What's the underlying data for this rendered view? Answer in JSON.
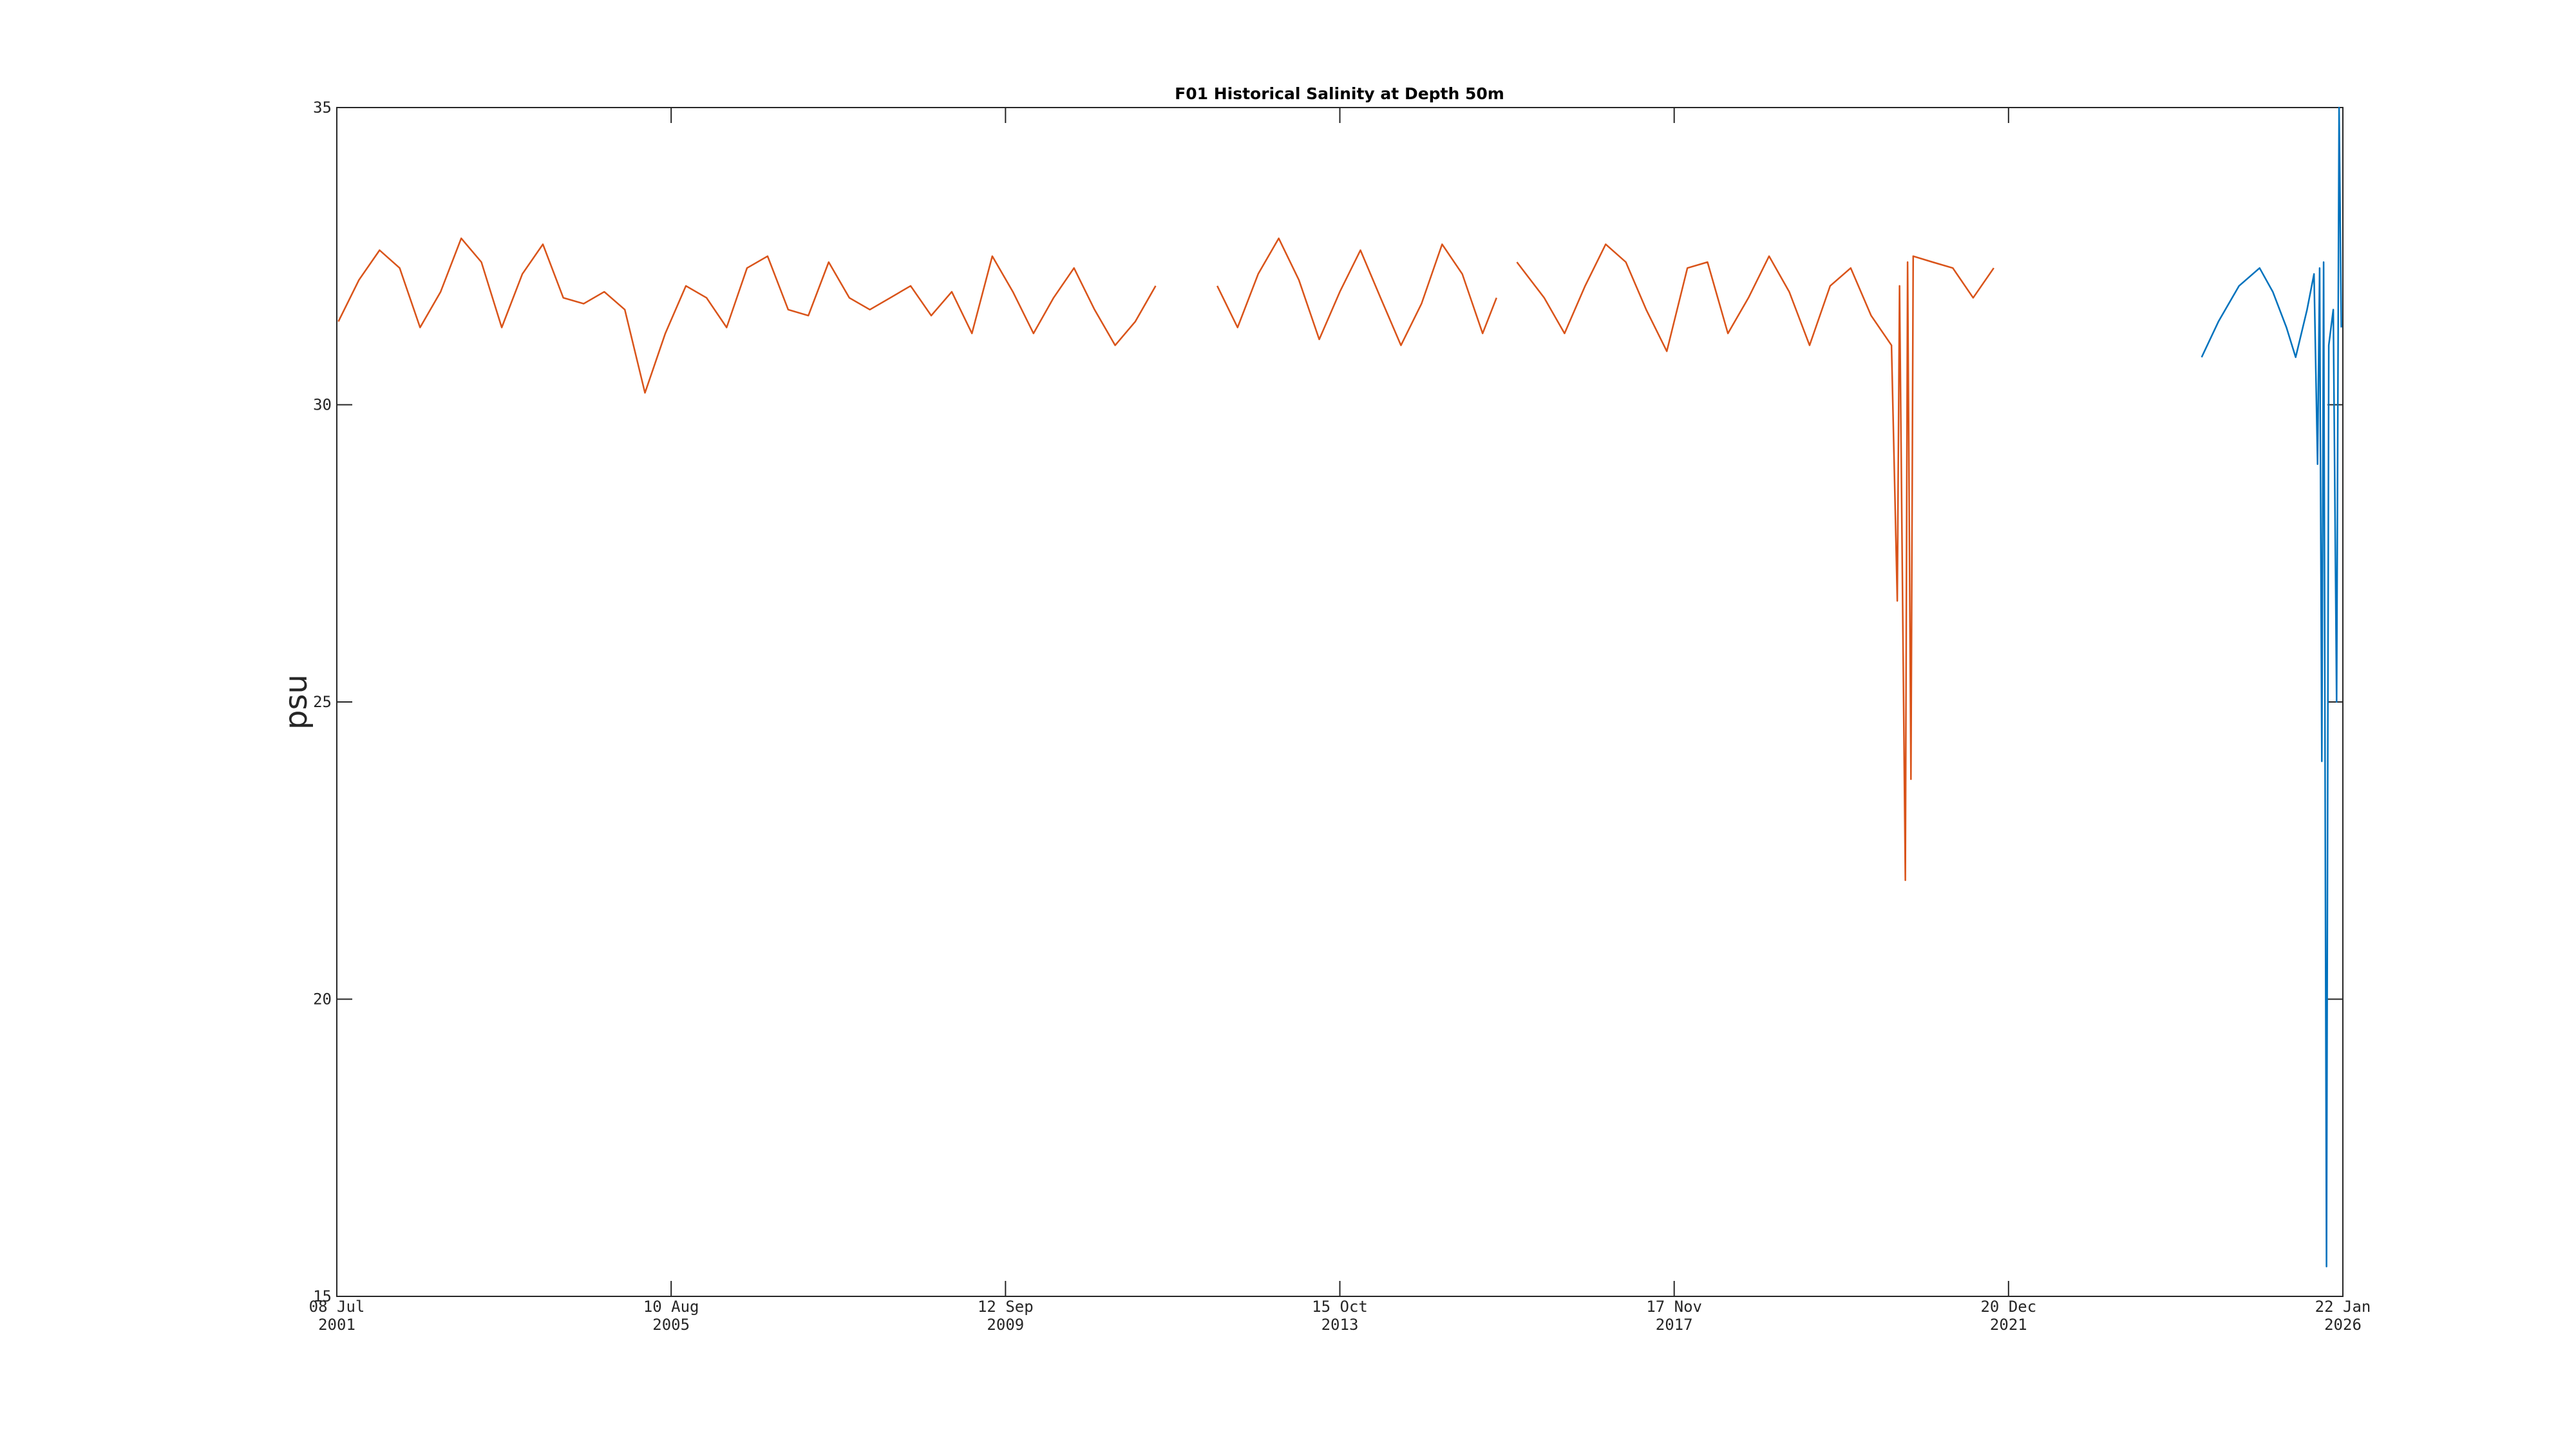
{
  "chart_data": {
    "type": "line",
    "title": "F01 Historical Salinity at Depth 50m",
    "y_label": "psu",
    "xlim": [
      "2001-07-08",
      "2026-01-22"
    ],
    "xticks": [
      {
        "value": "2001-07-08",
        "label": [
          "08 Jul",
          "2001"
        ]
      },
      {
        "value": "2005-08-10",
        "label": [
          "10 Aug",
          "2005"
        ]
      },
      {
        "value": "2009-09-12",
        "label": [
          "12 Sep",
          "2009"
        ]
      },
      {
        "value": "2013-10-15",
        "label": [
          "15 Oct",
          "2013"
        ]
      },
      {
        "value": "2017-11-17",
        "label": [
          "17 Nov",
          "2017"
        ]
      },
      {
        "value": "2021-12-20",
        "label": [
          "20 Dec",
          "2021"
        ]
      },
      {
        "value": "2026-01-22",
        "label": [
          "22 Jan",
          "2026"
        ]
      }
    ],
    "ylim": [
      15,
      35
    ],
    "yticks": [
      15,
      20,
      25,
      30,
      35
    ],
    "series": [
      {
        "color": "#d95319",
        "x": [
          "2001-07-15",
          "2001-10-15",
          "2002-01-15",
          "2002-04-15",
          "2002-07-15",
          "2002-10-15",
          "2003-01-15",
          "2003-04-15",
          "2003-07-15",
          "2003-10-15",
          "2004-01-15",
          "2004-04-15",
          "2004-07-15",
          "2004-10-15",
          "2005-01-15",
          "2005-04-15",
          "2005-07-15",
          "2005-10-15",
          "2006-01-15",
          "2006-04-15",
          "2006-07-15",
          "2006-10-15",
          "2007-01-15",
          "2007-04-15",
          "2007-07-15",
          "2007-10-15",
          "2008-01-15",
          "2008-04-15",
          "2008-07-15",
          "2008-10-15",
          "2009-01-15",
          "2009-04-15",
          "2009-07-15",
          "2009-10-15",
          "2010-01-15",
          "2010-04-15",
          "2010-07-15",
          "2010-10-15",
          "2011-01-15",
          "2011-04-15",
          "2011-07-15",
          "2011-12-15",
          "2012-04-15",
          "2012-07-15",
          "2012-10-15",
          "2013-01-15",
          "2013-04-15",
          "2013-07-15",
          "2013-10-15",
          "2014-01-15",
          "2014-04-15",
          "2014-07-15",
          "2014-10-15",
          "2015-01-15",
          "2015-04-15",
          "2015-07-15",
          "2015-09-15",
          "2015-10-15",
          "2015-12-15",
          "2016-04-15",
          "2016-07-15",
          "2016-10-15",
          "2017-01-15",
          "2017-04-15",
          "2017-07-15",
          "2017-10-15",
          "2018-01-15",
          "2018-04-15",
          "2018-07-15",
          "2018-10-15",
          "2019-01-15",
          "2019-04-15",
          "2019-07-15",
          "2019-10-15",
          "2020-01-15",
          "2020-04-15",
          "2020-07-15",
          "2020-08-10",
          "2020-08-20",
          "2020-09-15",
          "2020-09-25",
          "2020-10-10",
          "2020-10-20",
          "2021-01-15",
          "2021-04-15",
          "2021-07-15",
          "2021-10-15"
        ],
        "values": [
          31.4,
          32.1,
          32.6,
          32.3,
          31.3,
          31.9,
          32.8,
          32.4,
          31.3,
          32.2,
          32.7,
          31.8,
          31.7,
          31.9,
          31.6,
          30.2,
          31.2,
          32.0,
          31.8,
          31.3,
          32.3,
          32.5,
          31.6,
          31.5,
          32.4,
          31.8,
          31.6,
          31.8,
          32.0,
          31.5,
          31.9,
          31.2,
          32.5,
          31.9,
          31.2,
          31.8,
          32.3,
          31.6,
          31.0,
          31.4,
          32.0,
          null,
          32.0,
          31.3,
          32.2,
          32.8,
          32.1,
          31.1,
          31.9,
          32.6,
          31.8,
          31.0,
          31.7,
          32.7,
          32.2,
          31.2,
          31.8,
          null,
          32.4,
          31.8,
          31.2,
          32.0,
          32.7,
          32.4,
          31.6,
          30.9,
          32.3,
          32.4,
          31.2,
          31.8,
          32.5,
          31.9,
          31.0,
          32.0,
          32.3,
          31.5,
          31.0,
          26.7,
          32.0,
          22.0,
          32.4,
          23.7,
          32.5,
          32.4,
          32.3,
          31.8,
          32.3
        ]
      },
      {
        "color": "#0072bd",
        "x": [
          "2024-05-01",
          "2024-07-15",
          "2024-10-15",
          "2025-01-15",
          "2025-03-15",
          "2025-05-15",
          "2025-06-25",
          "2025-08-15",
          "2025-09-15",
          "2025-10-01",
          "2025-10-10",
          "2025-10-20",
          "2025-10-28",
          "2025-11-10",
          "2025-11-20",
          "2025-12-10",
          "2025-12-25",
          "2026-01-05",
          "2026-01-15"
        ],
        "values": [
          30.8,
          31.4,
          32.0,
          32.3,
          31.9,
          31.3,
          30.8,
          31.6,
          32.2,
          29.0,
          32.3,
          24.0,
          32.4,
          15.5,
          31.0,
          31.6,
          25.0,
          35.0,
          31.3
        ]
      }
    ]
  }
}
